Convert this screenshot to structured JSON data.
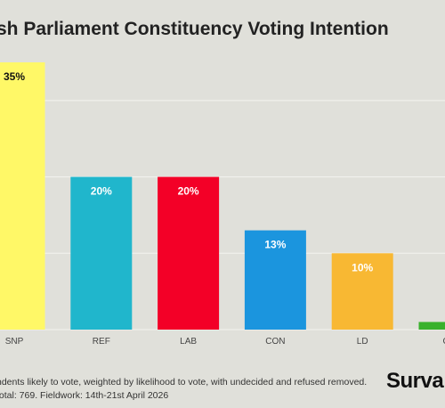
{
  "title": "sh Parliament Constituency Voting Intention",
  "footnote": {
    "line1": "ndents likely to vote, weighted by likelihood to vote, with undecided and refused removed.",
    "line2": "total: 769. Fieldwork: 14th-21st April 2026"
  },
  "logo": "Surva",
  "chart_data": {
    "type": "bar",
    "title": "sh Parliament Constituency Voting Intention",
    "categories": [
      "SNP",
      "REF",
      "LAB",
      "CON",
      "LD",
      "GR"
    ],
    "values": [
      35,
      20,
      20,
      13,
      10,
      1
    ],
    "data_labels": [
      "35%",
      "20%",
      "20%",
      "13%",
      "10%",
      ""
    ],
    "colors": [
      "#fff867",
      "#20b6cc",
      "#f30027",
      "#1b95de",
      "#f8b833",
      "#39b12c"
    ],
    "label_colors": [
      "#111111",
      "#ffffff",
      "#ffffff",
      "#ffffff",
      "#ffffff",
      "#ffffff"
    ],
    "ylim": [
      0,
      35
    ],
    "grid": true,
    "xlabel": "",
    "ylabel": ""
  }
}
